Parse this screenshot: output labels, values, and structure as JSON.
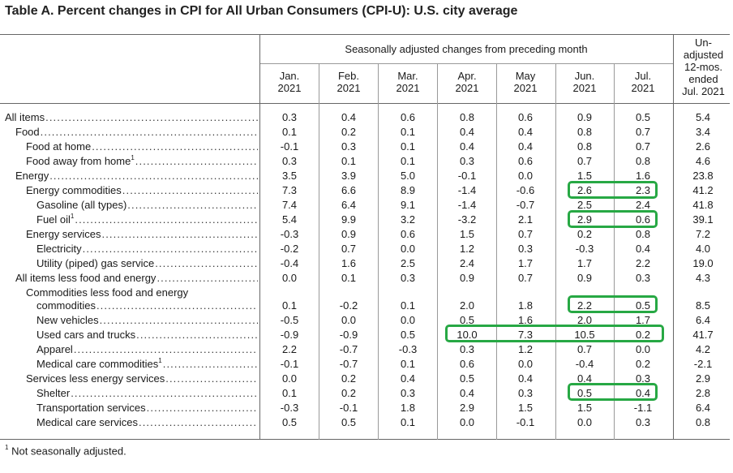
{
  "title": "Table A. Percent changes in CPI for All Urban Consumers (CPI-U): U.S. city average",
  "header": {
    "group": "Seasonally adjusted changes from preceding month",
    "unadjusted": [
      "Un-",
      "adjusted",
      "12-mos.",
      "ended",
      "Jul. 2021"
    ],
    "months": [
      {
        "m": "Jan.",
        "y": "2021"
      },
      {
        "m": "Feb.",
        "y": "2021"
      },
      {
        "m": "Mar.",
        "y": "2021"
      },
      {
        "m": "Apr.",
        "y": "2021"
      },
      {
        "m": "May",
        "y": "2021"
      },
      {
        "m": "Jun.",
        "y": "2021"
      },
      {
        "m": "Jul.",
        "y": "2021"
      }
    ]
  },
  "rows": [
    {
      "label": "All items",
      "values": [
        "0.3",
        "0.4",
        "0.6",
        "0.8",
        "0.6",
        "0.9",
        "0.5",
        "5.4"
      ]
    },
    {
      "label": "Food",
      "values": [
        "0.1",
        "0.2",
        "0.1",
        "0.4",
        "0.4",
        "0.8",
        "0.7",
        "3.4"
      ]
    },
    {
      "label": "Food at home",
      "values": [
        "-0.1",
        "0.3",
        "0.1",
        "0.4",
        "0.4",
        "0.8",
        "0.7",
        "2.6"
      ]
    },
    {
      "label": "Food away from home",
      "note": "1",
      "values": [
        "0.3",
        "0.1",
        "0.1",
        "0.3",
        "0.6",
        "0.7",
        "0.8",
        "4.6"
      ]
    },
    {
      "label": "Energy",
      "values": [
        "3.5",
        "3.9",
        "5.0",
        "-0.1",
        "0.0",
        "1.5",
        "1.6",
        "23.8"
      ]
    },
    {
      "label": "Energy commodities",
      "values": [
        "7.3",
        "6.6",
        "8.9",
        "-1.4",
        "-0.6",
        "2.6",
        "2.3",
        "41.2"
      ]
    },
    {
      "label": "Gasoline (all types)",
      "values": [
        "7.4",
        "6.4",
        "9.1",
        "-1.4",
        "-0.7",
        "2.5",
        "2.4",
        "41.8"
      ]
    },
    {
      "label": "Fuel oil",
      "note": "1",
      "values": [
        "5.4",
        "9.9",
        "3.2",
        "-3.2",
        "2.1",
        "2.9",
        "0.6",
        "39.1"
      ]
    },
    {
      "label": "Energy services",
      "values": [
        "-0.3",
        "0.9",
        "0.6",
        "1.5",
        "0.7",
        "0.2",
        "0.8",
        "7.2"
      ]
    },
    {
      "label": "Electricity",
      "values": [
        "-0.2",
        "0.7",
        "0.0",
        "1.2",
        "0.3",
        "-0.3",
        "0.4",
        "4.0"
      ]
    },
    {
      "label": "Utility (piped) gas service",
      "values": [
        "-0.4",
        "1.6",
        "2.5",
        "2.4",
        "1.7",
        "1.7",
        "2.2",
        "19.0"
      ]
    },
    {
      "label": "All items less food and energy",
      "values": [
        "0.0",
        "0.1",
        "0.3",
        "0.9",
        "0.7",
        "0.9",
        "0.3",
        "4.3"
      ]
    },
    {
      "label": "Commodities less food and energy",
      "values": []
    },
    {
      "label": "commodities",
      "values": [
        "0.1",
        "-0.2",
        "0.1",
        "2.0",
        "1.8",
        "2.2",
        "0.5",
        "8.5"
      ]
    },
    {
      "label": "New vehicles",
      "values": [
        "-0.5",
        "0.0",
        "0.0",
        "0.5",
        "1.6",
        "2.0",
        "1.7",
        "6.4"
      ]
    },
    {
      "label": "Used cars and trucks",
      "values": [
        "-0.9",
        "-0.9",
        "0.5",
        "10.0",
        "7.3",
        "10.5",
        "0.2",
        "41.7"
      ]
    },
    {
      "label": "Apparel",
      "values": [
        "2.2",
        "-0.7",
        "-0.3",
        "0.3",
        "1.2",
        "0.7",
        "0.0",
        "4.2"
      ]
    },
    {
      "label": "Medical care commodities",
      "note": "1",
      "values": [
        "-0.1",
        "-0.7",
        "0.1",
        "0.6",
        "0.0",
        "-0.4",
        "0.2",
        "-2.1"
      ]
    },
    {
      "label": "Services less energy services",
      "values": [
        "0.0",
        "0.2",
        "0.4",
        "0.5",
        "0.4",
        "0.4",
        "0.3",
        "2.9"
      ]
    },
    {
      "label": "Shelter",
      "values": [
        "0.1",
        "0.2",
        "0.3",
        "0.4",
        "0.3",
        "0.5",
        "0.4",
        "2.8"
      ]
    },
    {
      "label": "Transportation services",
      "values": [
        "-0.3",
        "-0.1",
        "1.8",
        "2.9",
        "1.5",
        "1.5",
        "-1.1",
        "6.4"
      ]
    },
    {
      "label": "Medical care services",
      "values": [
        "0.5",
        "0.5",
        "0.1",
        "0.0",
        "-0.1",
        "0.0",
        "0.3",
        "0.8"
      ]
    }
  ],
  "footnote": {
    "mark": "1",
    "text": "Not seasonally adjusted."
  },
  "highlight_color": "#27a844"
}
